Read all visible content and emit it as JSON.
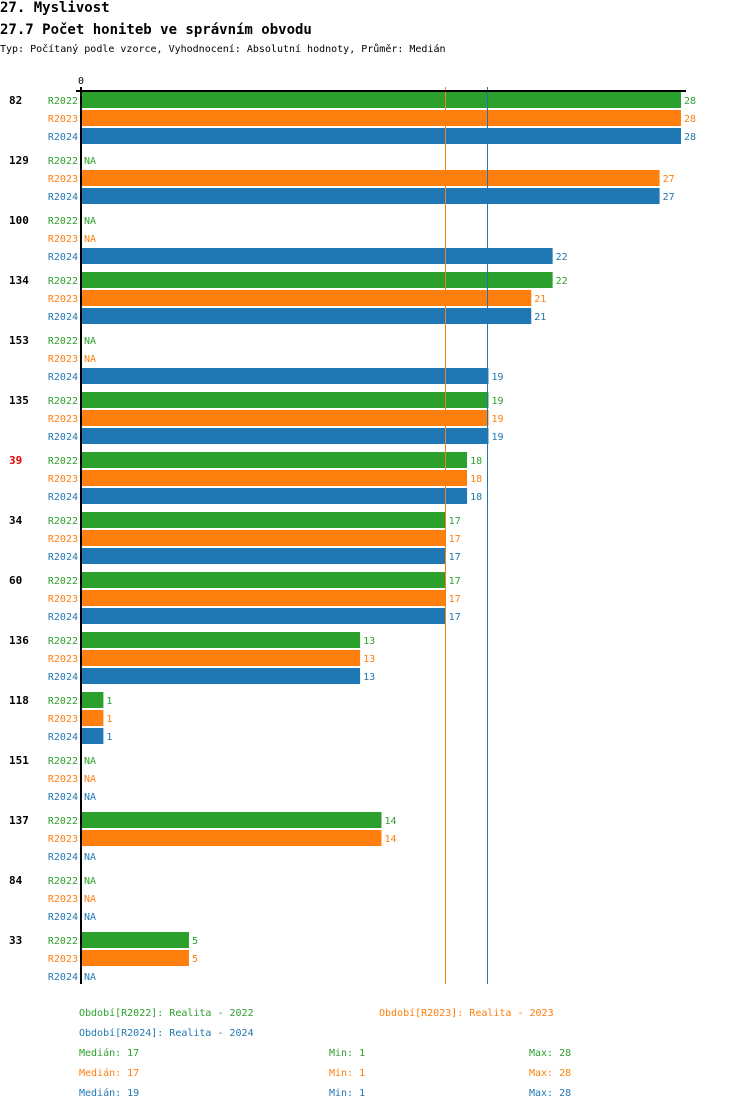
{
  "header": {
    "section": "27. Myslivost",
    "title": "27.7 Počet honiteb ve správním obvodu",
    "subtitle": "Typ: Počítaný podle vzorce, Vyhodnocení: Absolutní hodnoty, Průměr: Medián"
  },
  "colors": {
    "R2022": "#2ca02c",
    "R2023": "#ff7f0e",
    "R2024": "#1f77b4",
    "highlight": "#e00000",
    "axis": "#000000"
  },
  "chart_data": {
    "type": "bar",
    "orientation": "horizontal",
    "title": "27.7 Počet honiteb ve správním obvodu",
    "xlabel": "",
    "ylabel": "",
    "xlim": [
      0,
      28
    ],
    "x_tick_labels": [
      "0"
    ],
    "grid": false,
    "highlight_category": "39",
    "na_label": "NA",
    "categories": [
      "82",
      "129",
      "100",
      "134",
      "153",
      "135",
      "39",
      "34",
      "60",
      "136",
      "118",
      "151",
      "137",
      "84",
      "33"
    ],
    "series": [
      {
        "name": "R2022",
        "values": [
          28,
          null,
          null,
          22,
          null,
          19,
          18,
          17,
          17,
          13,
          1,
          null,
          14,
          null,
          5
        ]
      },
      {
        "name": "R2023",
        "values": [
          28,
          27,
          null,
          21,
          null,
          19,
          18,
          17,
          17,
          13,
          1,
          null,
          14,
          null,
          5
        ]
      },
      {
        "name": "R2024",
        "values": [
          28,
          27,
          22,
          21,
          19,
          19,
          18,
          17,
          17,
          13,
          1,
          null,
          null,
          null,
          null
        ]
      }
    ],
    "reference_lines": [
      {
        "series": "R2022",
        "kind": "median",
        "value": 17
      },
      {
        "series": "R2023",
        "kind": "median",
        "value": 17
      },
      {
        "series": "R2024",
        "kind": "median",
        "value": 19
      }
    ]
  },
  "legend": {
    "periods": [
      {
        "key": "R2022",
        "text": "Období[R2022]: Realita - 2022"
      },
      {
        "key": "R2023",
        "text": "Období[R2023]: Realita - 2023"
      },
      {
        "key": "R2024",
        "text": "Období[R2024]: Realita - 2024"
      }
    ],
    "stats": [
      {
        "key": "R2022",
        "median": "Medián: 17",
        "min": "Min: 1",
        "max": "Max: 28"
      },
      {
        "key": "R2023",
        "median": "Medián: 17",
        "min": "Min: 1",
        "max": "Max: 28"
      },
      {
        "key": "R2024",
        "median": "Medián: 19",
        "min": "Min: 1",
        "max": "Max: 28"
      }
    ]
  }
}
